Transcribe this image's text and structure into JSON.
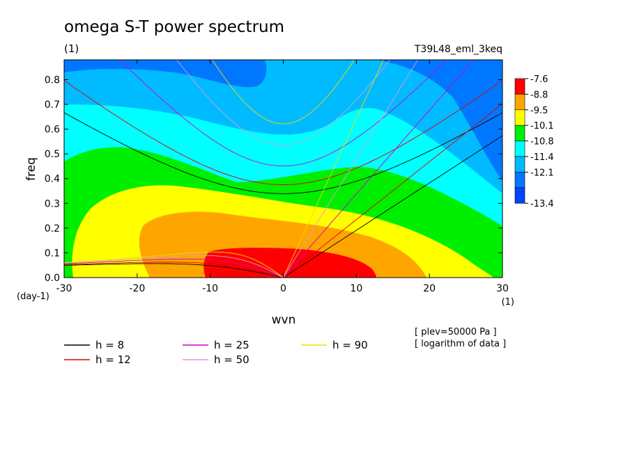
{
  "chart_data": {
    "type": "heatmap",
    "title": "omega S-T power spectrum",
    "title_units": "(1)",
    "run_label": "T39L48_eml_3keq",
    "xlabel": "wvn",
    "x_units": "(1)",
    "ylabel": "freq",
    "y_units": "(day-1)",
    "xlim": [
      -30,
      30
    ],
    "ylim": [
      0,
      0.88
    ],
    "x_ticks": [
      "-30",
      "-20",
      "-10",
      "0",
      "10",
      "20",
      "30"
    ],
    "y_ticks": [
      "0.0",
      "0.1",
      "0.2",
      "0.3",
      "0.4",
      "0.5",
      "0.6",
      "0.7",
      "0.8"
    ],
    "colorbar": {
      "labels": [
        "-7.6",
        "-8.8",
        "-9.5",
        "-10.1",
        "-10.8",
        "-11.4",
        "-12.1",
        "-13.4"
      ],
      "colors": [
        "#ff0000",
        "#ffa500",
        "#ffff00",
        "#00ee00",
        "#00ffff",
        "#00bbff",
        "#0077ff",
        "#0044ff"
      ]
    },
    "dispersion_curves": [
      {
        "label": "h =  8",
        "h": 8,
        "color": "#000000"
      },
      {
        "label": "h = 12",
        "h": 12,
        "color": "#dd0000"
      },
      {
        "label": "h = 25",
        "h": 25,
        "color": "#cc00cc"
      },
      {
        "label": "h = 50",
        "h": 50,
        "color": "#dd99dd"
      },
      {
        "label": "h = 90",
        "h": 90,
        "color": "#eedd00"
      }
    ],
    "notes": [
      "[ plev=50000 Pa ]",
      "[ logarithm of data ]"
    ]
  }
}
